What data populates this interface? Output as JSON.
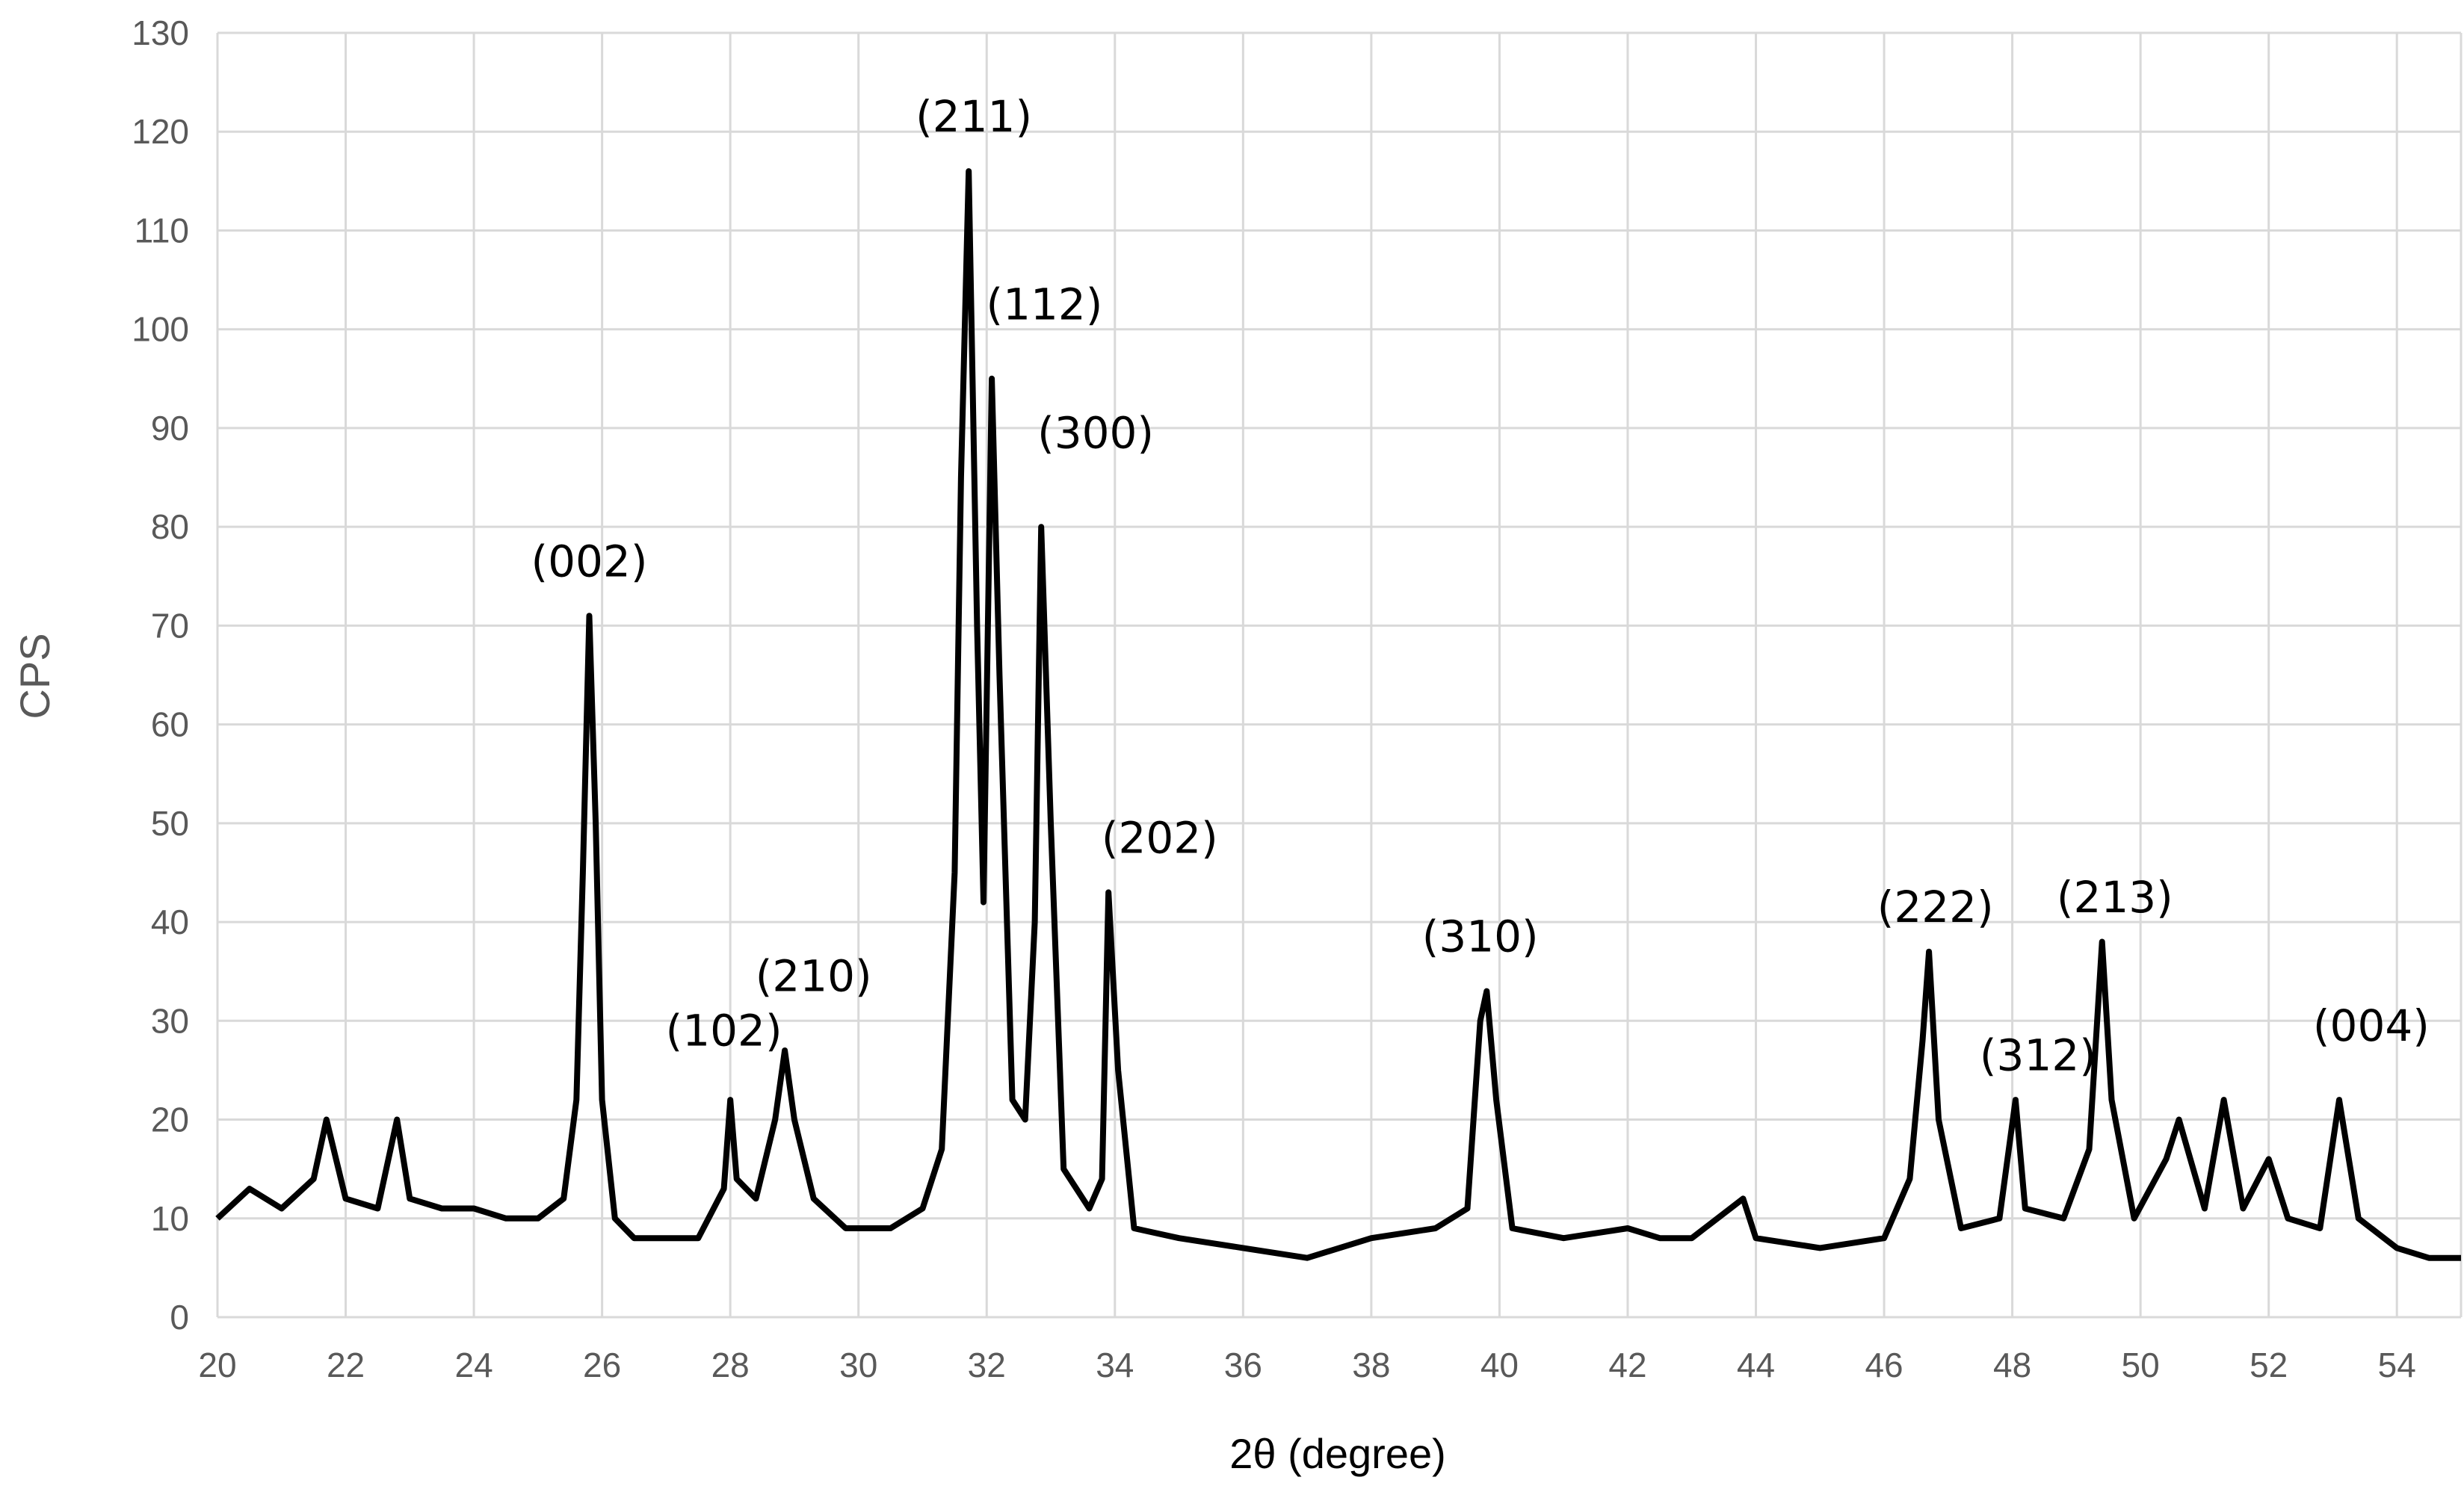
{
  "chart_data": {
    "type": "line",
    "title": "",
    "xlabel": "2θ (degree)",
    "ylabel": "CPS",
    "xlim": [
      20,
      55
    ],
    "ylim": [
      0,
      130
    ],
    "x_ticks": [
      20,
      22,
      24,
      26,
      28,
      30,
      32,
      34,
      36,
      38,
      40,
      42,
      44,
      46,
      48,
      50,
      52,
      54
    ],
    "y_ticks": [
      0,
      10,
      20,
      30,
      40,
      50,
      60,
      70,
      80,
      90,
      100,
      110,
      120,
      130
    ],
    "grid": true,
    "legend": "none",
    "line_color": "#000000",
    "series": [
      {
        "name": "",
        "points": [
          [
            20.0,
            10
          ],
          [
            20.5,
            13
          ],
          [
            21.0,
            11
          ],
          [
            21.5,
            14
          ],
          [
            21.7,
            20
          ],
          [
            22.0,
            12
          ],
          [
            22.5,
            11
          ],
          [
            22.8,
            20
          ],
          [
            23.0,
            12
          ],
          [
            23.5,
            11
          ],
          [
            24.0,
            11
          ],
          [
            24.5,
            10
          ],
          [
            25.0,
            10
          ],
          [
            25.4,
            12
          ],
          [
            25.6,
            22
          ],
          [
            25.7,
            45
          ],
          [
            25.8,
            71
          ],
          [
            25.9,
            50
          ],
          [
            26.0,
            22
          ],
          [
            26.2,
            10
          ],
          [
            26.5,
            8
          ],
          [
            27.0,
            8
          ],
          [
            27.5,
            8
          ],
          [
            27.9,
            13
          ],
          [
            28.0,
            22
          ],
          [
            28.1,
            14
          ],
          [
            28.4,
            12
          ],
          [
            28.7,
            20
          ],
          [
            28.85,
            27
          ],
          [
            29.0,
            20
          ],
          [
            29.3,
            12
          ],
          [
            29.8,
            9
          ],
          [
            30.5,
            9
          ],
          [
            31.0,
            11
          ],
          [
            31.3,
            17
          ],
          [
            31.5,
            45
          ],
          [
            31.6,
            85
          ],
          [
            31.72,
            116
          ],
          [
            31.85,
            70
          ],
          [
            31.95,
            42
          ],
          [
            32.08,
            95
          ],
          [
            32.2,
            65
          ],
          [
            32.4,
            22
          ],
          [
            32.6,
            20
          ],
          [
            32.75,
            40
          ],
          [
            32.85,
            80
          ],
          [
            33.0,
            50
          ],
          [
            33.2,
            15
          ],
          [
            33.6,
            11
          ],
          [
            33.8,
            14
          ],
          [
            33.9,
            43
          ],
          [
            34.05,
            25
          ],
          [
            34.3,
            9
          ],
          [
            35.0,
            8
          ],
          [
            36.0,
            7
          ],
          [
            37.0,
            6
          ],
          [
            38.0,
            8
          ],
          [
            39.0,
            9
          ],
          [
            39.5,
            11
          ],
          [
            39.7,
            30
          ],
          [
            39.8,
            33
          ],
          [
            39.95,
            22
          ],
          [
            40.2,
            9
          ],
          [
            41.0,
            8
          ],
          [
            42.0,
            9
          ],
          [
            42.5,
            8
          ],
          [
            43.0,
            8
          ],
          [
            43.8,
            12
          ],
          [
            44.0,
            8
          ],
          [
            45.0,
            7
          ],
          [
            46.0,
            8
          ],
          [
            46.4,
            14
          ],
          [
            46.6,
            28
          ],
          [
            46.7,
            37
          ],
          [
            46.85,
            20
          ],
          [
            47.2,
            9
          ],
          [
            47.8,
            10
          ],
          [
            48.05,
            22
          ],
          [
            48.2,
            11
          ],
          [
            48.8,
            10
          ],
          [
            49.2,
            17
          ],
          [
            49.4,
            38
          ],
          [
            49.55,
            22
          ],
          [
            49.9,
            10
          ],
          [
            50.4,
            16
          ],
          [
            50.6,
            20
          ],
          [
            51.0,
            11
          ],
          [
            51.3,
            22
          ],
          [
            51.6,
            11
          ],
          [
            52.0,
            16
          ],
          [
            52.3,
            10
          ],
          [
            52.8,
            9
          ],
          [
            53.1,
            22
          ],
          [
            53.4,
            10
          ],
          [
            54.0,
            7
          ],
          [
            54.5,
            6
          ],
          [
            55.0,
            6
          ]
        ]
      }
    ],
    "annotations": [
      {
        "text": "(002)",
        "x": 25.8,
        "y": 75
      },
      {
        "text": "(102)",
        "x": 27.9,
        "y": 27.5
      },
      {
        "text": "(210)",
        "x": 29.3,
        "y": 33
      },
      {
        "text": "(211)",
        "x": 31.8,
        "y": 120
      },
      {
        "text": "(112)",
        "x": 32.9,
        "y": 101
      },
      {
        "text": "(300)",
        "x": 33.7,
        "y": 88
      },
      {
        "text": "(202)",
        "x": 34.7,
        "y": 47
      },
      {
        "text": "(310)",
        "x": 39.7,
        "y": 37
      },
      {
        "text": "(222)",
        "x": 46.8,
        "y": 40
      },
      {
        "text": "(312)",
        "x": 48.4,
        "y": 25
      },
      {
        "text": "(213)",
        "x": 49.6,
        "y": 41
      },
      {
        "text": "(004)",
        "x": 53.6,
        "y": 28
      }
    ]
  }
}
